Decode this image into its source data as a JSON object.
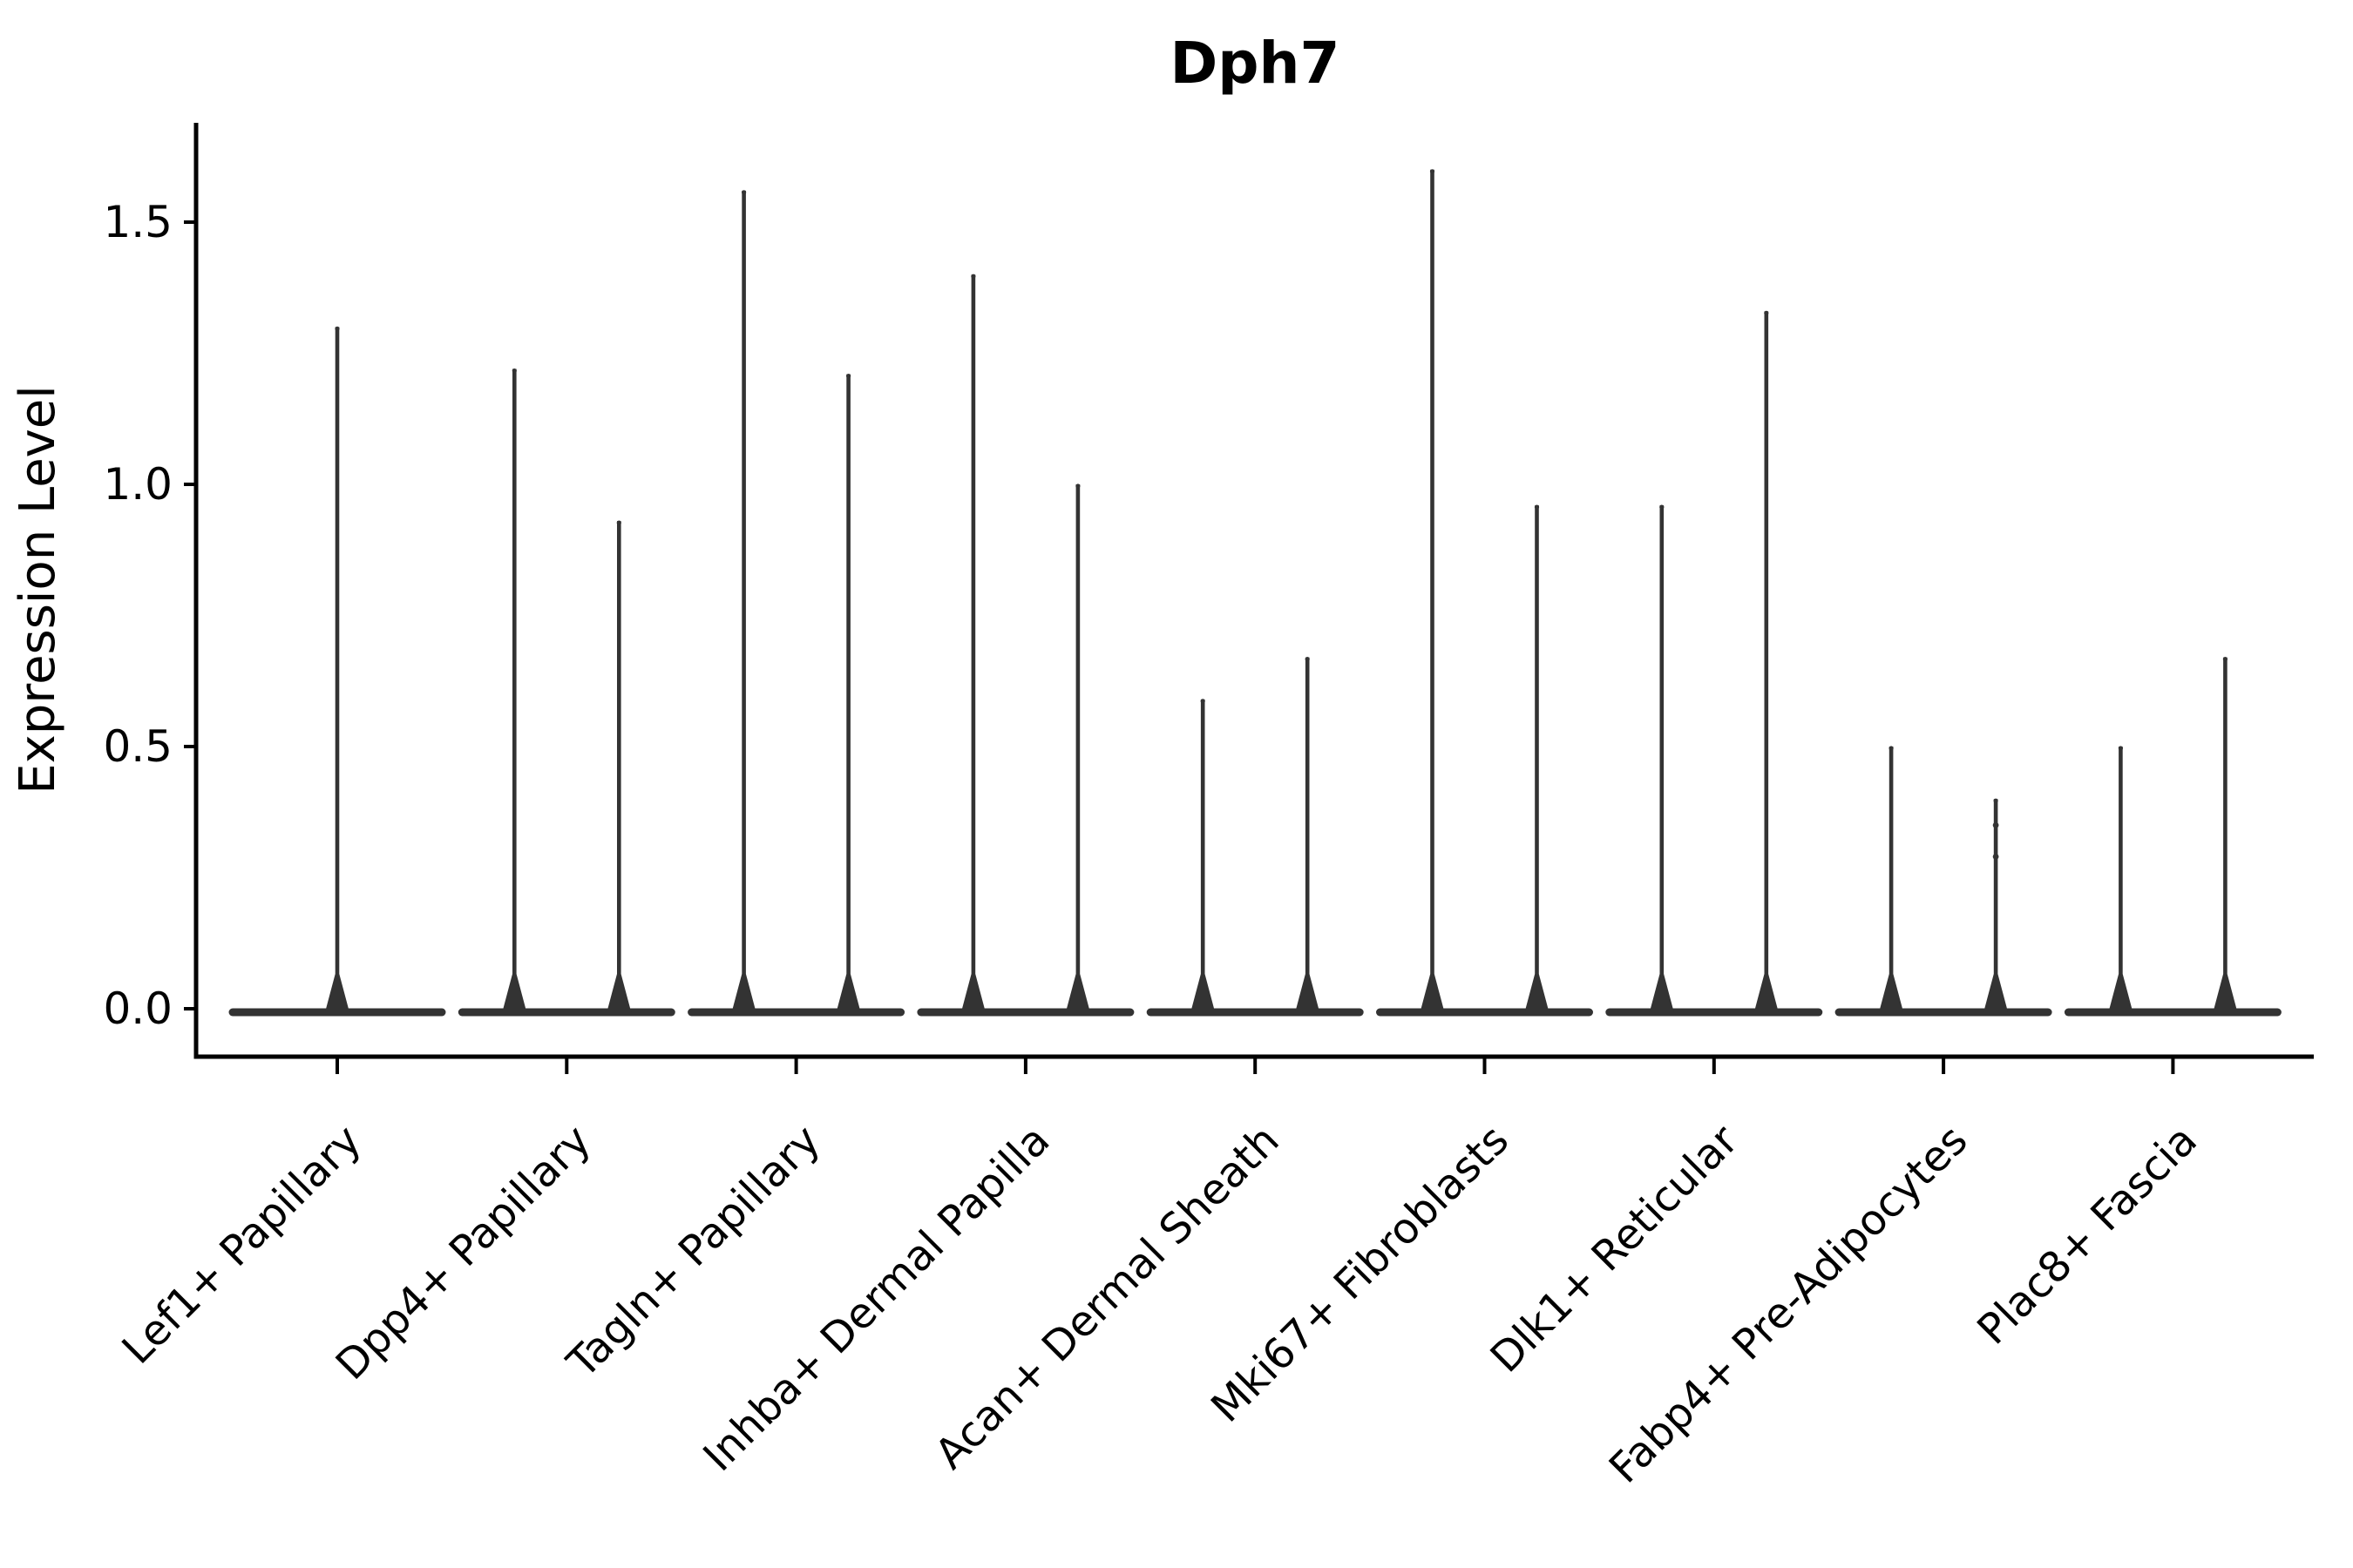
{
  "figure": {
    "title": "Dph7",
    "background": "#ffffff"
  },
  "chart_data": {
    "type": "violin",
    "title": "Dph7",
    "xlabel": "",
    "ylabel": "Expression Level",
    "ytick_labels": [
      "0.0",
      "0.5",
      "1.0",
      "1.5"
    ],
    "ytick_values": [
      0.0,
      0.5,
      1.0,
      1.5
    ],
    "ylim": [
      -0.09,
      1.69
    ],
    "grid": false,
    "legend": null,
    "violin_color": "#333333",
    "axis_color": "#000000",
    "baseline_value": 0.0,
    "categories": [
      {
        "label": "Lef1+ Papillary",
        "violins": [
          {
            "side": "center",
            "max": 1.3
          }
        ]
      },
      {
        "label": "Dpp4+ Papillary",
        "violins": [
          {
            "side": "left",
            "max": 1.22
          },
          {
            "side": "right",
            "max": 0.93
          }
        ]
      },
      {
        "label": "Tagln+ Papillary",
        "violins": [
          {
            "side": "left",
            "max": 1.56
          },
          {
            "side": "right",
            "max": 1.21
          }
        ]
      },
      {
        "label": "Inhba+ Dermal Papilla",
        "violins": [
          {
            "side": "left",
            "max": 1.4
          },
          {
            "side": "right",
            "max": 1.0
          }
        ]
      },
      {
        "label": "Acan+ Dermal Sheath",
        "violins": [
          {
            "side": "left",
            "max": 0.59
          },
          {
            "side": "right",
            "max": 0.67
          }
        ]
      },
      {
        "label": "Mki67+ Fibroblasts",
        "violins": [
          {
            "side": "left",
            "max": 1.6
          },
          {
            "side": "right",
            "max": 0.96
          }
        ]
      },
      {
        "label": "Dlk1+ Reticular",
        "violins": [
          {
            "side": "left",
            "max": 0.96
          },
          {
            "side": "right",
            "max": 1.33
          }
        ]
      },
      {
        "label": "Fabp4+ Pre-Adipocytes",
        "violins": [
          {
            "side": "left",
            "max": 0.5
          },
          {
            "side": "right",
            "max": 0.4,
            "extra_points": [
              0.35,
              0.29
            ]
          }
        ]
      },
      {
        "label": "Plac8+ Fascia",
        "violins": [
          {
            "side": "left",
            "max": 0.5
          },
          {
            "side": "right",
            "max": 0.67
          }
        ]
      }
    ]
  }
}
